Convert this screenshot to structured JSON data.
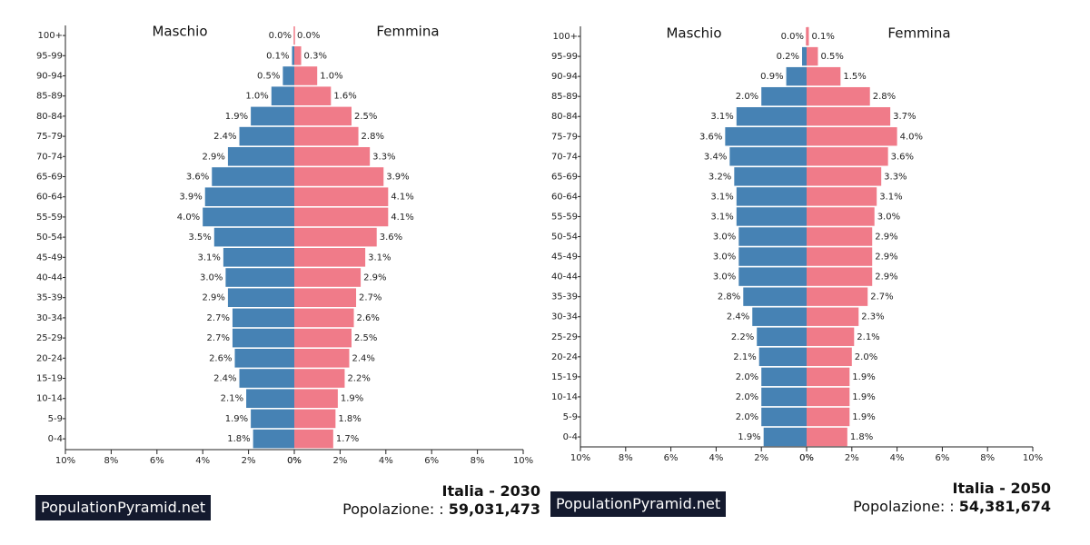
{
  "chart_data": [
    {
      "type": "bar",
      "orientation": "horizontal-pyramid",
      "left_label": "Maschio",
      "right_label": "Femmina",
      "categories": [
        "100+",
        "95-99",
        "90-94",
        "85-89",
        "80-84",
        "75-79",
        "70-74",
        "65-69",
        "60-64",
        "55-59",
        "50-54",
        "45-49",
        "40-44",
        "35-39",
        "30-34",
        "25-29",
        "20-24",
        "15-19",
        "10-14",
        "5-9",
        "0-4"
      ],
      "series": [
        {
          "name": "Maschio",
          "color": "#4682b4",
          "values": [
            0.0,
            0.1,
            0.5,
            1.0,
            1.9,
            2.4,
            2.9,
            3.6,
            3.9,
            4.0,
            3.5,
            3.1,
            3.0,
            2.9,
            2.7,
            2.7,
            2.6,
            2.4,
            2.1,
            1.9,
            1.8
          ]
        },
        {
          "name": "Femmina",
          "color": "#f07b89",
          "values": [
            0.0,
            0.3,
            1.0,
            1.6,
            2.5,
            2.8,
            3.3,
            3.9,
            4.1,
            4.1,
            3.6,
            3.1,
            2.9,
            2.7,
            2.6,
            2.5,
            2.4,
            2.2,
            1.9,
            1.8,
            1.7
          ]
        }
      ],
      "xlim": [
        0,
        10
      ],
      "x_ticks": [
        "10%",
        "8%",
        "6%",
        "4%",
        "2%",
        "0%",
        "0%",
        "2%",
        "4%",
        "6%",
        "8%",
        "10%"
      ],
      "title": "Italia - 2030",
      "population_label": "Popolazione: :",
      "population_value": "59,031,473",
      "brand": "PopulationPyramid.net"
    },
    {
      "type": "bar",
      "orientation": "horizontal-pyramid",
      "left_label": "Maschio",
      "right_label": "Femmina",
      "categories": [
        "100+",
        "95-99",
        "90-94",
        "85-89",
        "80-84",
        "75-79",
        "70-74",
        "65-69",
        "60-64",
        "55-59",
        "50-54",
        "45-49",
        "40-44",
        "35-39",
        "30-34",
        "25-29",
        "20-24",
        "15-19",
        "10-14",
        "5-9",
        "0-4"
      ],
      "series": [
        {
          "name": "Maschio",
          "color": "#4682b4",
          "values": [
            0.0,
            0.2,
            0.9,
            2.0,
            3.1,
            3.6,
            3.4,
            3.2,
            3.1,
            3.1,
            3.0,
            3.0,
            3.0,
            2.8,
            2.4,
            2.2,
            2.1,
            2.0,
            2.0,
            2.0,
            1.9
          ]
        },
        {
          "name": "Femmina",
          "color": "#f07b89",
          "values": [
            0.1,
            0.5,
            1.5,
            2.8,
            3.7,
            4.0,
            3.6,
            3.3,
            3.1,
            3.0,
            2.9,
            2.9,
            2.9,
            2.7,
            2.3,
            2.1,
            2.0,
            1.9,
            1.9,
            1.9,
            1.8
          ]
        }
      ],
      "xlim": [
        0,
        10
      ],
      "x_ticks": [
        "10%",
        "8%",
        "6%",
        "4%",
        "2%",
        "0%",
        "0%",
        "2%",
        "4%",
        "6%",
        "8%",
        "10%"
      ],
      "title": "Italia - 2050",
      "population_label": "Popolazione: :",
      "population_value": "54,381,674",
      "brand": "PopulationPyramid.net"
    }
  ]
}
